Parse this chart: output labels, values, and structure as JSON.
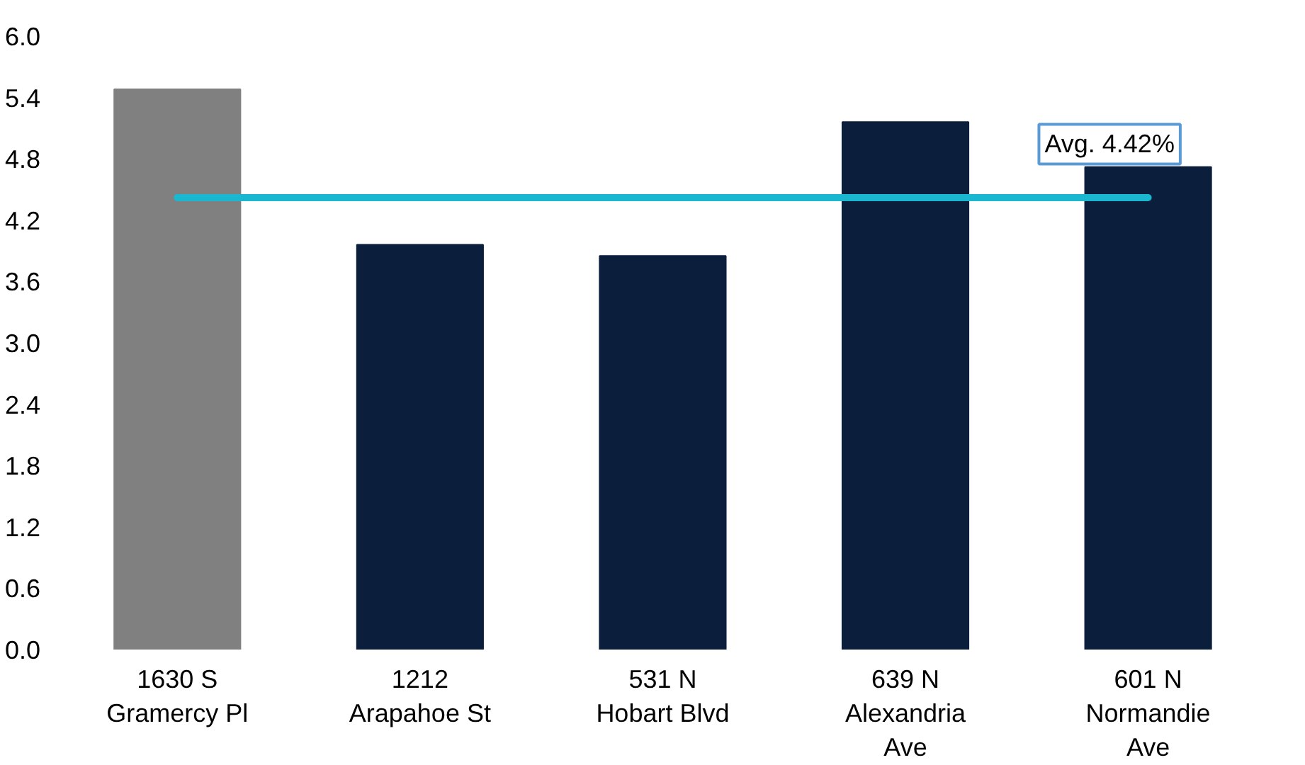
{
  "chart_data": {
    "type": "bar",
    "categories": [
      "1630 S Gramercy Pl",
      "1212 Arapahoe St",
      "531 N Hobart Blvd",
      "639 N Alexandria Ave",
      "601 N Normandie Ave"
    ],
    "values": [
      5.48,
      3.96,
      3.85,
      5.16,
      4.72
    ],
    "colors": [
      "#808080",
      "#0b1f3d",
      "#0b1f3d",
      "#0b1f3d",
      "#0b1f3d"
    ],
    "ylim": [
      0,
      6
    ],
    "yticks": [
      {
        "value": 0,
        "label": "0.0"
      },
      0.6,
      1.2,
      1.8,
      2.4,
      {
        "value": 3,
        "label": "3.0"
      },
      3.6,
      4.2,
      4.8,
      5.4,
      {
        "value": 6,
        "label": "6.0"
      }
    ],
    "ref_lines": [
      {
        "axis": "y",
        "value": 4.42,
        "label": "Avg. 4.42%",
        "color": "#1ab8d0"
      }
    ],
    "grid": false
  }
}
